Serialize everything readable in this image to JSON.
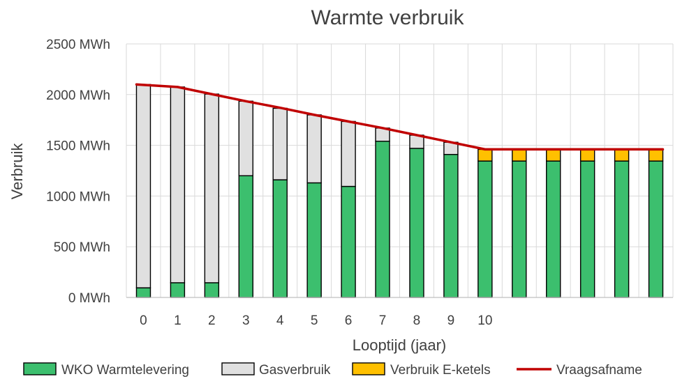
{
  "chart_data": {
    "type": "bar",
    "stacked": true,
    "title": "Warmte verbruik",
    "xlabel": "Looptijd (jaar)",
    "ylabel": "Verbruik",
    "ylim": [
      0,
      2500
    ],
    "yticks": [
      {
        "value": 0,
        "label": "0 MWh"
      },
      {
        "value": 500,
        "label": "500 MWh"
      },
      {
        "value": 1000,
        "label": "1000 MWh"
      },
      {
        "value": 1500,
        "label": "1500 MWh"
      },
      {
        "value": 2000,
        "label": "2000 MWh"
      },
      {
        "value": 2500,
        "label": "2500 MWh"
      }
    ],
    "categories": [
      "0",
      "1",
      "2",
      "3",
      "4",
      "5",
      "6",
      "7",
      "8",
      "9",
      "10",
      "",
      "",
      "",
      "",
      ""
    ],
    "grid": true,
    "legend_position": "bottom",
    "series": [
      {
        "name": "WKO Warmtelevering",
        "kind": "bar",
        "color": "#3cbf6e",
        "values": [
          95,
          145,
          145,
          1200,
          1160,
          1130,
          1095,
          1540,
          1470,
          1410,
          1345,
          1345,
          1345,
          1345,
          1345,
          1345
        ]
      },
      {
        "name": "Gasverbruik",
        "kind": "bar",
        "color": "#e0e0e0",
        "values": [
          2005,
          1930,
          1860,
          735,
          705,
          670,
          640,
          130,
          130,
          120,
          0,
          0,
          0,
          0,
          0,
          0
        ]
      },
      {
        "name": "Verbruik E-ketels",
        "kind": "bar",
        "color": "#ffc000",
        "values": [
          0,
          0,
          0,
          0,
          0,
          0,
          0,
          0,
          0,
          0,
          115,
          115,
          115,
          115,
          115,
          115
        ]
      },
      {
        "name": "Vraagsafname",
        "kind": "line",
        "color": "#c00000",
        "values": [
          2100,
          2075,
          2005,
          1935,
          1870,
          1800,
          1735,
          1670,
          1600,
          1530,
          1460,
          1460,
          1460,
          1460,
          1460,
          1460
        ]
      }
    ]
  }
}
